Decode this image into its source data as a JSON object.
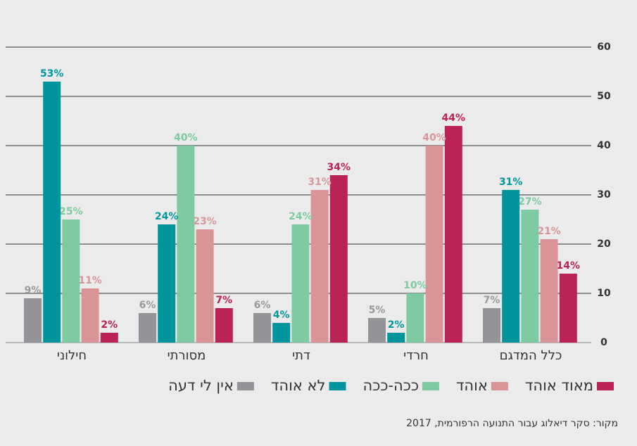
{
  "chart_data": {
    "type": "bar",
    "source": "מקור: סקר דיאלוג עבור התנועה הרפורמית, 2017",
    "categories": [
      "כלל המדגם",
      "חרדי",
      "דתי",
      "מסורתי",
      "חילוני"
    ],
    "series": [
      {
        "name": "מאוד אוהד",
        "color": "#bb2256",
        "label_color": "#bd2155",
        "values": [
          14,
          44,
          34,
          7,
          2
        ],
        "value_labels": [
          "14%",
          "44%",
          "34%",
          "7%",
          "2%"
        ]
      },
      {
        "name": "אוהד",
        "color": "#da9498",
        "label_color": "#d99599",
        "values": [
          21,
          40,
          31,
          23,
          11
        ],
        "value_labels": [
          "21%",
          "40%",
          "31%",
          "23%",
          "11%"
        ]
      },
      {
        "name": "ככה-ככה",
        "color": "#7ecba1",
        "label_color": "#7ccaa0",
        "values": [
          27,
          10,
          24,
          40,
          25
        ],
        "value_labels": [
          "27%",
          "10%",
          "24%",
          "40%",
          "25%"
        ]
      },
      {
        "name": "לא אוהד",
        "color": "#00959c",
        "label_color": "#00979d",
        "values": [
          31,
          2,
          4,
          24,
          53
        ],
        "value_labels": [
          "31%",
          "2%",
          "4%",
          "24%",
          "53%"
        ]
      },
      {
        "name": "אין לי דעה",
        "color": "#929497",
        "label_color": "#999999",
        "values": [
          7,
          5,
          6,
          6,
          9
        ],
        "value_labels": [
          "7%",
          "5%",
          "6%",
          "6%",
          "9%"
        ]
      }
    ],
    "ylim": [
      0,
      60
    ],
    "yticks": [
      0,
      10,
      20,
      30,
      40,
      50,
      60
    ],
    "grid": true
  }
}
